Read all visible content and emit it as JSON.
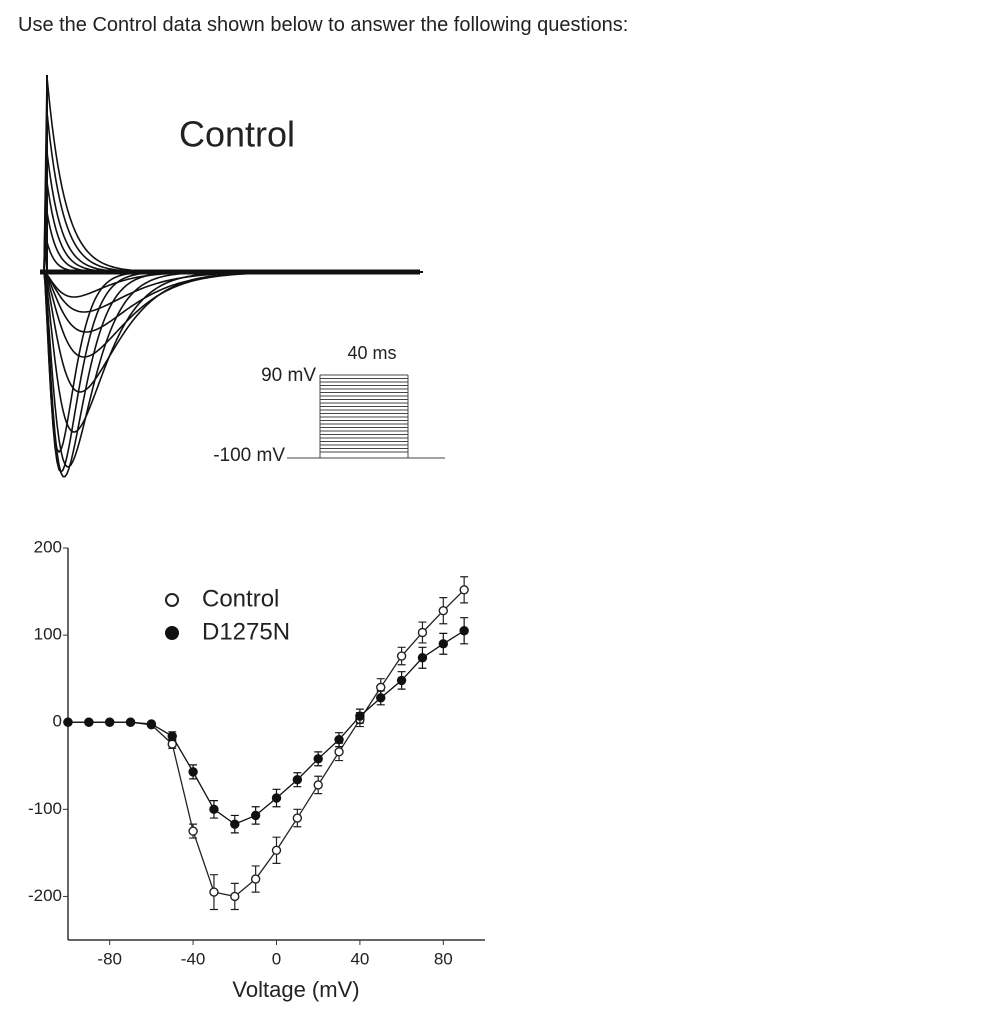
{
  "question": "Use the Control data shown below to answer the following questions:",
  "traces": {
    "title": "Control",
    "step_label": "90 mV",
    "duration_label": "40 ms",
    "holding_label": "-100 mV"
  },
  "chart_data": {
    "type": "line",
    "x_label": "Voltage (mV)",
    "x": [
      -100,
      -90,
      -80,
      -70,
      -60,
      -50,
      -40,
      -30,
      -20,
      -10,
      0,
      10,
      20,
      30,
      40,
      50,
      60,
      70,
      80,
      90
    ],
    "series": [
      {
        "name": "Control",
        "color": "#222222",
        "marker": "open",
        "values": [
          0,
          0,
          0,
          0,
          -3,
          -25,
          -125,
          -195,
          -200,
          -180,
          -147,
          -110,
          -72,
          -34,
          3,
          40,
          76,
          103,
          128,
          152
        ],
        "errors": [
          0,
          0,
          0,
          0,
          0,
          5,
          8,
          20,
          15,
          15,
          15,
          10,
          10,
          10,
          8,
          10,
          10,
          12,
          15,
          15
        ]
      },
      {
        "name": "D1275N",
        "color": "#111111",
        "marker": "filled",
        "values": [
          0,
          0,
          0,
          0,
          -2,
          -16,
          -57,
          -100,
          -117,
          -107,
          -87,
          -66,
          -42,
          -20,
          7,
          28,
          48,
          74,
          90,
          105
        ],
        "errors": [
          0,
          0,
          0,
          0,
          0,
          5,
          8,
          10,
          10,
          10,
          10,
          8,
          8,
          8,
          8,
          8,
          10,
          12,
          12,
          15
        ]
      }
    ],
    "xlim": [
      -100,
      100
    ],
    "xticks": [
      -80,
      -40,
      0,
      40,
      80
    ],
    "ylim": [
      -250,
      200
    ],
    "yticks": [
      200,
      100,
      0,
      -100,
      -200
    ],
    "legend": "upper left"
  }
}
